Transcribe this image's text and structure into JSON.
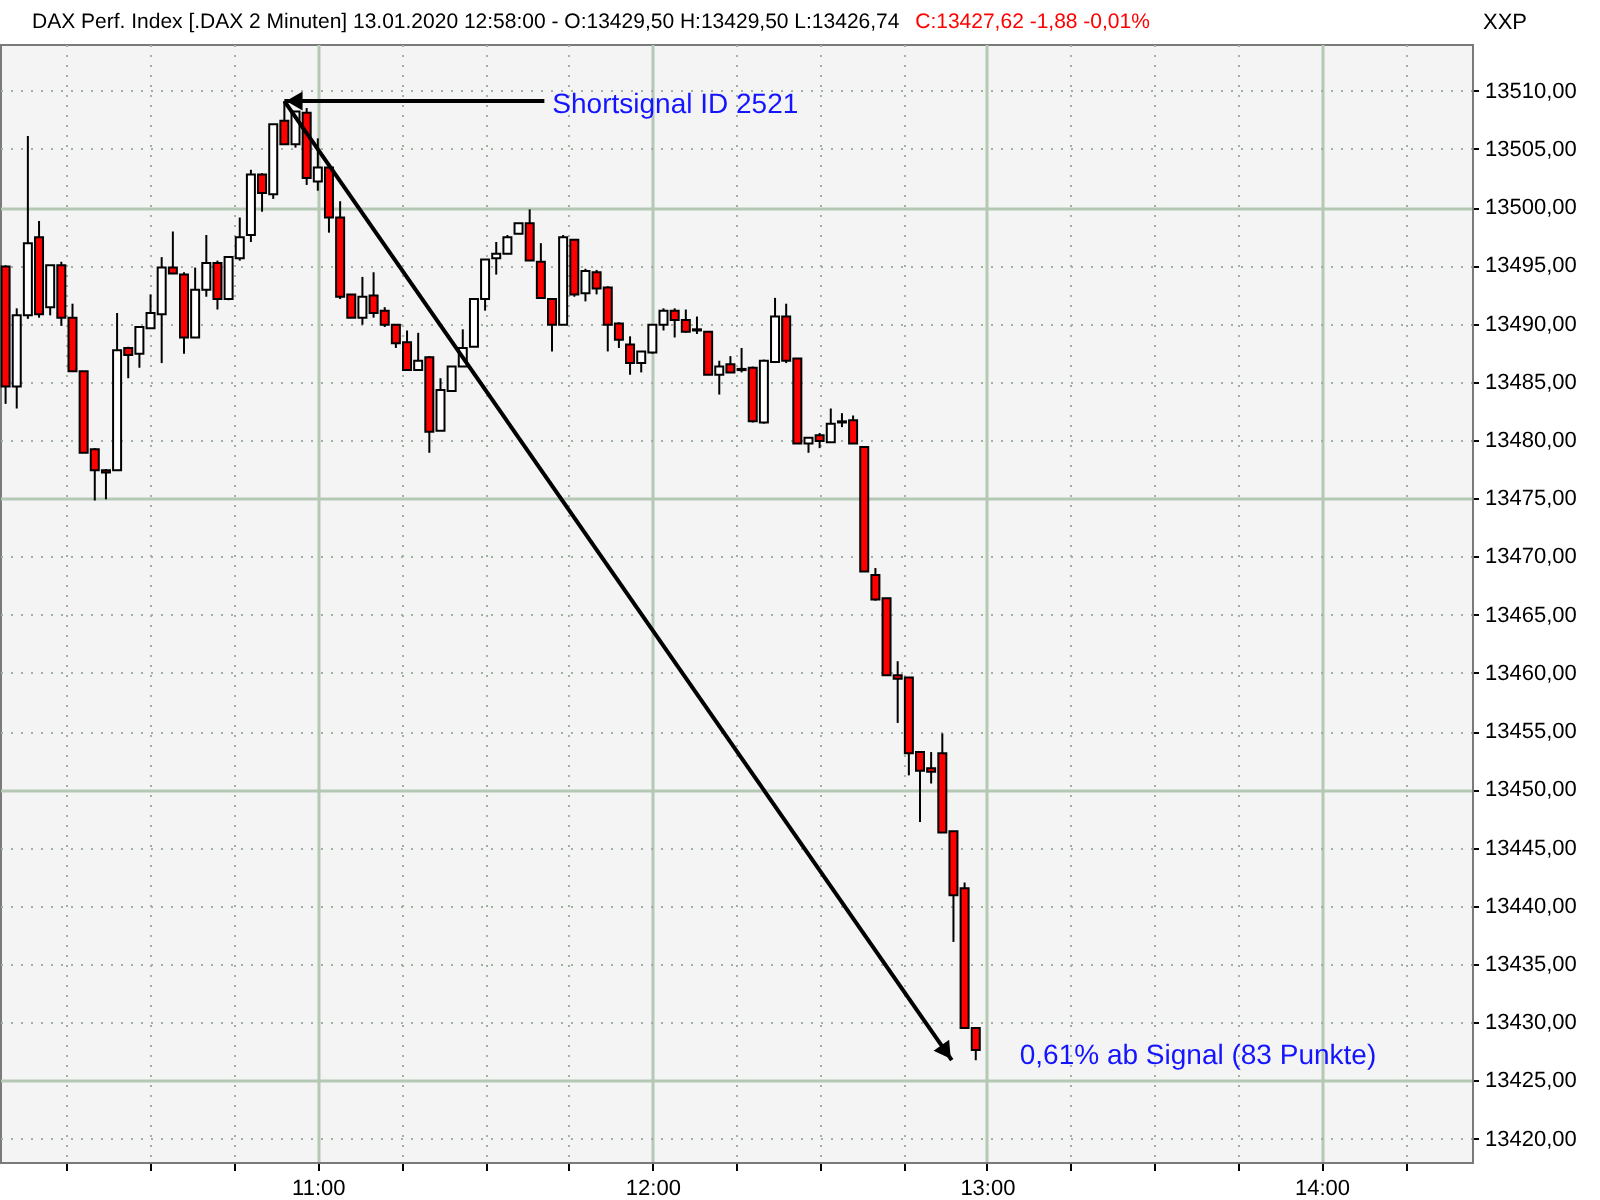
{
  "chart_data": {
    "type": "candlestick",
    "title": "DAX Perf. Index [.DAX  2 Minuten] 13.01.2020 12:58:00 - O:13429,50 H:13429,50 L:13426,74",
    "subtitle": "C:13427,62 -1,88 -0,01%",
    "ylabel": "XXP",
    "x": [
      10.0667,
      10.1,
      10.1333,
      10.1667,
      10.2,
      10.2333,
      10.2667,
      10.3,
      10.3333,
      10.3667,
      10.4,
      10.4333,
      10.4667,
      10.5,
      10.5333,
      10.5667,
      10.6,
      10.6333,
      10.6667,
      10.7,
      10.7333,
      10.7667,
      10.8,
      10.8333,
      10.8667,
      10.9,
      10.9333,
      10.9667,
      11.0,
      11.0333,
      11.0667,
      11.1,
      11.1333,
      11.1667,
      11.2,
      11.2333,
      11.2667,
      11.3,
      11.3333,
      11.3667,
      11.4,
      11.4333,
      11.4667,
      11.5,
      11.5333,
      11.5667,
      11.6,
      11.6333,
      11.6667,
      11.7,
      11.7333,
      11.7667,
      11.8,
      11.8333,
      11.8667,
      11.9,
      11.9333,
      11.9667,
      12.0,
      12.0333,
      12.0667,
      12.1,
      12.1333,
      12.1667,
      12.2,
      12.2333,
      12.2667,
      12.3,
      12.3333,
      12.3667,
      12.4,
      12.4333,
      12.4667,
      12.5,
      12.5333,
      12.5667,
      12.6,
      12.6333,
      12.6667,
      12.7,
      12.7333,
      12.7667,
      12.8,
      12.8333,
      12.8667,
      12.9,
      12.9333,
      12.9667
    ],
    "ohlc": [
      [
        13494.9,
        13495.0,
        13483.1,
        13484.6
      ],
      [
        13484.6,
        13491.3,
        13482.7,
        13490.7
      ],
      [
        13490.7,
        13506.1,
        13490.4,
        13496.9
      ],
      [
        13497.4,
        13498.8,
        13490.5,
        13490.8
      ],
      [
        13491.4,
        13495.0,
        13490.7,
        13495.0
      ],
      [
        13495.0,
        13495.3,
        13489.8,
        13490.5
      ],
      [
        13490.5,
        13491.7,
        13485.9,
        13485.9
      ],
      [
        13485.9,
        13485.9,
        13478.9,
        13478.9
      ],
      [
        13479.2,
        13479.3,
        13474.8,
        13477.4
      ],
      [
        13477.4,
        13477.5,
        13474.9,
        13477.2
      ],
      [
        13477.4,
        13490.9,
        13477.4,
        13487.7
      ],
      [
        13487.9,
        13488.0,
        13485.3,
        13487.3
      ],
      [
        13487.4,
        13489.7,
        13486.2,
        13489.7
      ],
      [
        13489.6,
        13492.5,
        13489.6,
        13490.9
      ],
      [
        13490.8,
        13495.7,
        13486.6,
        13494.8
      ],
      [
        13494.8,
        13497.9,
        13494.3,
        13494.3
      ],
      [
        13494.2,
        13494.4,
        13487.4,
        13488.8
      ],
      [
        13488.8,
        13494.8,
        13488.8,
        13492.9
      ],
      [
        13492.9,
        13497.6,
        13492.3,
        13495.2
      ],
      [
        13495.2,
        13495.4,
        13491.2,
        13492.1
      ],
      [
        13492.1,
        13495.8,
        13492.0,
        13495.7
      ],
      [
        13495.6,
        13499.1,
        13495.4,
        13497.4
      ],
      [
        13497.6,
        13503.2,
        13497.0,
        13502.8
      ],
      [
        13502.8,
        13502.9,
        13499.6,
        13501.2
      ],
      [
        13501.1,
        13507.1,
        13500.7,
        13507.1
      ],
      [
        13507.4,
        13509.1,
        13505.4,
        13505.4
      ],
      [
        13505.4,
        13508.2,
        13505.1,
        13508.2
      ],
      [
        13508.1,
        13508.5,
        13501.9,
        13502.5
      ],
      [
        13502.2,
        13505.9,
        13501.4,
        13503.4
      ],
      [
        13503.4,
        13503.5,
        13497.8,
        13499.1
      ],
      [
        13499.1,
        13500.5,
        13492.1,
        13492.3
      ],
      [
        13492.5,
        13492.5,
        13490.5,
        13490.5
      ],
      [
        13490.5,
        13494.0,
        13489.9,
        13492.3
      ],
      [
        13492.4,
        13494.4,
        13490.5,
        13490.9
      ],
      [
        13491.1,
        13491.4,
        13489.7,
        13489.9
      ],
      [
        13489.9,
        13489.9,
        13487.9,
        13488.3
      ],
      [
        13488.4,
        13489.4,
        13486.0,
        13486.0
      ],
      [
        13486.0,
        13489.2,
        13486.0,
        13486.8
      ],
      [
        13487.1,
        13487.2,
        13478.9,
        13480.7
      ],
      [
        13480.8,
        13485.3,
        13480.8,
        13484.3
      ],
      [
        13484.2,
        13486.3,
        13484.2,
        13486.3
      ],
      [
        13486.3,
        13489.5,
        13486.3,
        13487.9
      ],
      [
        13488.0,
        13492.1,
        13488.0,
        13492.1
      ],
      [
        13492.1,
        13495.5,
        13491.1,
        13495.5
      ],
      [
        13495.6,
        13497.0,
        13494.2,
        13496.0
      ],
      [
        13496.0,
        13497.6,
        13496.0,
        13497.4
      ],
      [
        13497.7,
        13498.6,
        13497.7,
        13498.6
      ],
      [
        13498.6,
        13499.8,
        13495.4,
        13495.4
      ],
      [
        13495.3,
        13496.9,
        13492.2,
        13492.2
      ],
      [
        13492.1,
        13492.1,
        13487.6,
        13489.9
      ],
      [
        13489.9,
        13497.6,
        13489.9,
        13497.4
      ],
      [
        13497.2,
        13497.2,
        13492.3,
        13492.5
      ],
      [
        13492.6,
        13494.7,
        13491.9,
        13494.5
      ],
      [
        13494.4,
        13494.6,
        13492.5,
        13493.0
      ],
      [
        13493.1,
        13493.2,
        13487.6,
        13489.9
      ],
      [
        13490.0,
        13490.1,
        13487.9,
        13488.6
      ],
      [
        13488.2,
        13488.9,
        13485.6,
        13486.6
      ],
      [
        13486.6,
        13487.6,
        13485.8,
        13487.6
      ],
      [
        13487.5,
        13489.9,
        13487.4,
        13489.9
      ],
      [
        13489.9,
        13491.3,
        13489.4,
        13491.1
      ],
      [
        13491.1,
        13491.3,
        13488.8,
        13490.3
      ],
      [
        13490.3,
        13491.2,
        13489.2,
        13489.3
      ],
      [
        13489.5,
        13490.6,
        13489.1,
        13489.4
      ],
      [
        13489.3,
        13489.3,
        13485.6,
        13485.6
      ],
      [
        13485.6,
        13486.8,
        13483.9,
        13486.3
      ],
      [
        13486.5,
        13487.2,
        13485.8,
        13485.8
      ],
      [
        13486.1,
        13487.9,
        13485.8,
        13486.0
      ],
      [
        13486.2,
        13486.3,
        13481.5,
        13481.6
      ],
      [
        13481.5,
        13486.9,
        13481.4,
        13486.8
      ],
      [
        13486.7,
        13492.2,
        13486.7,
        13490.6
      ],
      [
        13490.6,
        13491.7,
        13486.6,
        13486.8
      ],
      [
        13487.0,
        13487.0,
        13479.7,
        13479.7
      ],
      [
        13479.7,
        13480.2,
        13478.9,
        13480.2
      ],
      [
        13480.4,
        13480.6,
        13479.3,
        13479.9
      ],
      [
        13479.8,
        13482.7,
        13479.8,
        13481.4
      ],
      [
        13481.6,
        13482.3,
        13481.1,
        13481.5
      ],
      [
        13481.7,
        13482.1,
        13479.7,
        13479.7
      ],
      [
        13479.4,
        13479.4,
        13468.7,
        13468.7
      ],
      [
        13468.4,
        13469.0,
        13466.2,
        13466.3
      ],
      [
        13466.4,
        13466.4,
        13459.8,
        13459.8
      ],
      [
        13459.8,
        13461.0,
        13455.7,
        13459.5
      ],
      [
        13459.6,
        13459.6,
        13451.2,
        13453.1
      ],
      [
        13453.2,
        13453.2,
        13447.2,
        13451.6
      ],
      [
        13451.8,
        13453.2,
        13450.5,
        13451.5
      ],
      [
        13453.1,
        13454.8,
        13446.3,
        13446.3
      ],
      [
        13446.4,
        13446.4,
        13436.9,
        13440.9
      ],
      [
        13441.5,
        13442.0,
        13429.5,
        13429.5
      ],
      [
        13429.5,
        13429.5,
        13426.74,
        13427.62
      ]
    ],
    "colors": [
      "#ff0000",
      "#ffffff",
      "#ffffff",
      "#ff0000",
      "#ffffff",
      "#ff0000",
      "#ff0000",
      "#ff0000",
      "#ff0000",
      "#ff0000",
      "#ffffff",
      "#ff0000",
      "#ffffff",
      "#ffffff",
      "#ffffff",
      "#ff0000",
      "#ff0000",
      "#ffffff",
      "#ffffff",
      "#ff0000",
      "#ffffff",
      "#ffffff",
      "#ffffff",
      "#ff0000",
      "#ffffff",
      "#ff0000",
      "#ffffff",
      "#ff0000",
      "#ffffff",
      "#ff0000",
      "#ff0000",
      "#ff0000",
      "#ffffff",
      "#ff0000",
      "#ff0000",
      "#ff0000",
      "#ff0000",
      "#ffffff",
      "#ff0000",
      "#ffffff",
      "#ffffff",
      "#ffffff",
      "#ffffff",
      "#ffffff",
      "#ffffff",
      "#ffffff",
      "#ffffff",
      "#ff0000",
      "#ff0000",
      "#ff0000",
      "#ffffff",
      "#ff0000",
      "#ffffff",
      "#ff0000",
      "#ff0000",
      "#ff0000",
      "#ff0000",
      "#ffffff",
      "#ffffff",
      "#ffffff",
      "#ff0000",
      "#ff0000",
      "#ff0000",
      "#ff0000",
      "#ffffff",
      "#ff0000",
      "#ff0000",
      "#ff0000",
      "#ffffff",
      "#ffffff",
      "#ff0000",
      "#ff0000",
      "#ffffff",
      "#ff0000",
      "#ffffff",
      "#ff0000",
      "#ff0000",
      "#ff0000",
      "#ff0000",
      "#ff0000",
      "#ff0000",
      "#ff0000",
      "#ff0000",
      "#ff0000",
      "#ff0000",
      "#ff0000",
      "#ff0000",
      "#ff0000"
    ],
    "xlim": [
      10.05,
      14.45
    ],
    "xticks": [
      {
        "value": 10.25,
        "label": null
      },
      {
        "value": 10.5,
        "label": null
      },
      {
        "value": 10.75,
        "label": null
      },
      {
        "value": 11,
        "label": "11:00"
      },
      {
        "value": 11.25,
        "label": null
      },
      {
        "value": 11.5,
        "label": null
      },
      {
        "value": 11.75,
        "label": null
      },
      {
        "value": 12,
        "label": "12:00"
      },
      {
        "value": 12.25,
        "label": null
      },
      {
        "value": 12.5,
        "label": null
      },
      {
        "value": 12.75,
        "label": null
      },
      {
        "value": 13,
        "label": "13:00"
      },
      {
        "value": 13.25,
        "label": null
      },
      {
        "value": 13.5,
        "label": null
      },
      {
        "value": 13.75,
        "label": null
      },
      {
        "value": 14,
        "label": "14:00"
      },
      {
        "value": 14.25,
        "label": null
      }
    ],
    "ylim": [
      13418,
      13514
    ],
    "yticks": [
      {
        "value": 13420,
        "label": "13420,00"
      },
      {
        "value": 13425,
        "label": "13425,00"
      },
      {
        "value": 13430,
        "label": "13430,00"
      },
      {
        "value": 13435,
        "label": "13435,00"
      },
      {
        "value": 13440,
        "label": "13440,00"
      },
      {
        "value": 13445,
        "label": "13445,00"
      },
      {
        "value": 13450,
        "label": "13450,00"
      },
      {
        "value": 13455,
        "label": "13455,00"
      },
      {
        "value": 13460,
        "label": "13460,00"
      },
      {
        "value": 13465,
        "label": "13465,00"
      },
      {
        "value": 13470,
        "label": "13470,00"
      },
      {
        "value": 13475,
        "label": "13475,00"
      },
      {
        "value": 13480,
        "label": "13480,00"
      },
      {
        "value": 13485,
        "label": "13485,00"
      },
      {
        "value": 13490,
        "label": "13490,00"
      },
      {
        "value": 13495,
        "label": "13495,00"
      },
      {
        "value": 13500,
        "label": "13500,00"
      },
      {
        "value": 13505,
        "label": "13505,00"
      },
      {
        "value": 13510,
        "label": "13510,00"
      }
    ],
    "grid": true,
    "annotations": [
      {
        "text": "Shortsignal ID 2521",
        "x": 10.9,
        "y": 13509.1
      },
      {
        "text": "0,61% ab Signal (83 Punkte)",
        "x": 12.9667,
        "y": 13426.74
      }
    ]
  }
}
